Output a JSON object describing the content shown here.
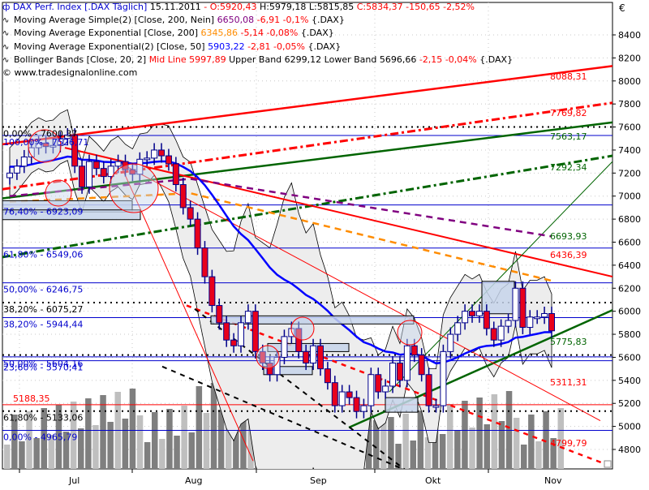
{
  "header": {
    "symbol_glyph": "ф",
    "instrument": "DAX Perf. Index [.DAX  Täglich]",
    "date": "15.11.2011",
    "dash": " - ",
    "open": "O:5920,43",
    "high": "H:5979,18",
    "low": "L:5815,85",
    "close": "C:5834,37",
    "change": "-150,65",
    "change_pct": "-2,52%"
  },
  "indicators": [
    {
      "glyph": "∿",
      "label": "Moving Average Simple(2) [Close, 200, Nein]",
      "value": "6650,08",
      "value_color": "#800080",
      "change": "-6,91",
      "change_pct": "-0,1%",
      "suffix": "{.DAX}"
    },
    {
      "glyph": "∿",
      "label": "Moving Average Exponential [Close, 200]",
      "value": "6345,86",
      "value_color": "#FF8C00",
      "change": "-5,14",
      "change_pct": "-0,08%",
      "suffix": "{.DAX}"
    },
    {
      "glyph": "∿",
      "label": "Moving Average Exponential(2) [Close, 50]",
      "value": "5903,22",
      "value_color": "#0000FF",
      "change": "-2,81",
      "change_pct": "-0,05%",
      "suffix": "{.DAX}"
    },
    {
      "glyph": "∿",
      "label": "Bollinger Bands [Close, 20, 2]",
      "mid_label": "Mid Line 5997,89",
      "upper_label": "Upper Band 6299,12",
      "lower_label": "Lower Band 5696,66",
      "change": "-2,15",
      "change_pct": "-0,04%",
      "suffix": "{.DAX}"
    }
  ],
  "copyright": "© www.tradesignalonline.com",
  "currency_symbol": "€",
  "colors": {
    "bear_candle": "#E8001C",
    "bull_candle": "#FFFFFF",
    "candle_outline": "#00008B",
    "fib_lines": "#0000CD",
    "red_trend": "#FF0000",
    "green_trend": "#006400",
    "ma200_simple": "#800080",
    "ema200": "#FF8C00",
    "ema50": "#0000FF",
    "bollinger_fill": "#EDEDED",
    "volume_dark": "#7F7F7F",
    "volume_light": "#BFBFBF"
  },
  "chart_data": {
    "type": "candlestick",
    "title": "DAX Perf. Index [.DAX Täglich] 15.11.2011",
    "xlabel": "",
    "ylabel": "€",
    "ylim": [
      4620,
      8600
    ],
    "y_ticks": [
      4800,
      5000,
      5200,
      5400,
      5600,
      5800,
      6000,
      6200,
      6400,
      6600,
      6800,
      7000,
      7200,
      7400,
      7600,
      7800,
      8000,
      8200,
      8400
    ],
    "x_ticks": [
      "Jul",
      "Aug",
      "Sep",
      "Okt",
      "Nov"
    ],
    "grid": true,
    "last_bar": {
      "open": 5920.43,
      "high": 5979.18,
      "low": 5815.85,
      "close": 5834.37,
      "change": -150.65,
      "change_pct": -2.52
    },
    "fibonacci_levels": [
      {
        "label": "0,00% - 7600,37",
        "value": 7600.37
      },
      {
        "label": "100,00% - 7526,71",
        "value": 7526.71
      },
      {
        "label": "76,40% - 6923,09",
        "value": 6923.09
      },
      {
        "label": "61,80% - 6549,06",
        "value": 6549.06
      },
      {
        "label": "50,00% - 6246,75",
        "value": 6246.75
      },
      {
        "label": "38,20% - 6075,27",
        "value": 6075.27
      },
      {
        "label": "38,20% - 5944,44",
        "value": 5944.44
      },
      {
        "label": "50,00% - 5604,16",
        "value": 5604.16
      },
      {
        "label": "23,60% - 5570,41",
        "value": 5570.41
      },
      {
        "label": "61,80% - 5133,06",
        "value": 5133.06
      },
      {
        "label": "0,00% - 4965,79",
        "value": 4965.79
      }
    ],
    "horizontal_levels": [
      {
        "label": "5188,35",
        "value": 5188.35
      }
    ],
    "trendline_labels": [
      {
        "label": "8088,31",
        "value": 8088.31,
        "color": "#FF0000"
      },
      {
        "label": "7769,82",
        "value": 7769.82,
        "color": "#FF0000"
      },
      {
        "label": "7563,17",
        "value": 7563.17,
        "color": "#006400"
      },
      {
        "label": "7292,34",
        "value": 7292.34,
        "color": "#006400"
      },
      {
        "label": "6693,93",
        "value": 6693.93,
        "color": "#006400"
      },
      {
        "label": "6436,39",
        "value": 6436.39,
        "color": "#FF0000"
      },
      {
        "label": "5775,83",
        "value": 5775.83,
        "color": "#006400"
      },
      {
        "label": "5311,31",
        "value": 5311.31,
        "color": "#FF0000"
      },
      {
        "label": "4799,79",
        "value": 4799.79,
        "color": "#FF0000"
      }
    ],
    "series": [
      {
        "name": "Moving Average Simple(2) [Close, 200, Nein]",
        "last": 6650.08
      },
      {
        "name": "Moving Average Exponential [Close, 200]",
        "last": 6345.86
      },
      {
        "name": "Moving Average Exponential(2) [Close, 50]",
        "last": 5903.22
      },
      {
        "name": "Bollinger Mid Line",
        "last": 5997.89
      },
      {
        "name": "Bollinger Upper Band",
        "last": 6299.12
      },
      {
        "name": "Bollinger Lower Band",
        "last": 5696.66
      }
    ],
    "candles_approx_close": [
      7200,
      7260,
      7340,
      7420,
      7460,
      7430,
      7440,
      7500,
      7530,
      7260,
      7080,
      7300,
      7240,
      7170,
      7260,
      7300,
      7230,
      7190,
      7320,
      7330,
      7400,
      7350,
      7280,
      7100,
      6900,
      6800,
      6550,
      6300,
      6050,
      5900,
      5750,
      5700,
      5900,
      6000,
      5650,
      5550,
      5450,
      5600,
      5780,
      5850,
      5650,
      5550,
      5700,
      5500,
      5380,
      5180,
      5300,
      5250,
      5130,
      5180,
      5450,
      5300,
      5350,
      5550,
      5400,
      5700,
      5620,
      5450,
      5180,
      5180,
      5650,
      5800,
      5900,
      6000,
      5960,
      6000,
      5850,
      5750,
      5870,
      5920,
      6200,
      5860,
      5950,
      5950,
      5980,
      5830
    ]
  }
}
